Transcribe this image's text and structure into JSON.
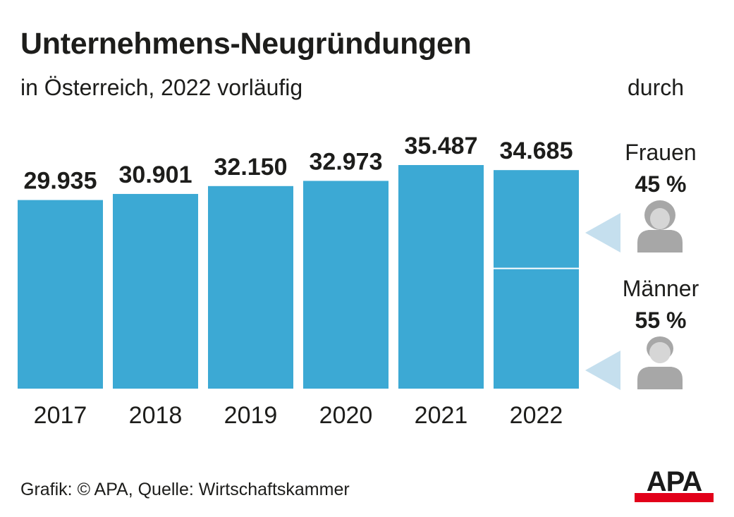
{
  "title": "Unternehmens-Neugründungen",
  "subtitle": "in Österreich, 2022 vorläufig",
  "side_header": "durch",
  "chart_data": {
    "type": "bar",
    "title": "Unternehmens-Neugründungen",
    "subtitle": "in Österreich, 2022 vorläufig",
    "categories": [
      "2017",
      "2018",
      "2019",
      "2020",
      "2021",
      "2022"
    ],
    "values": [
      29935,
      30901,
      32150,
      32973,
      35487,
      34685
    ],
    "value_labels": [
      "29.935",
      "30.901",
      "32.150",
      "32.973",
      "35.487",
      "34.685"
    ],
    "bar_color": "#3ca9d4",
    "breakdown_2022": [
      {
        "name": "Frauen",
        "share_label": "45 %",
        "share": 0.45
      },
      {
        "name": "Männer",
        "share_label": "55 %",
        "share": 0.55
      }
    ]
  },
  "gender": {
    "women": {
      "label": "Frauen",
      "pct": "45 %",
      "icon": "woman-icon"
    },
    "men": {
      "label": "Männer",
      "pct": "55 %",
      "icon": "man-icon"
    }
  },
  "colors": {
    "bar": "#3ca9d4",
    "arrow": "#c5dfee",
    "icon": "#a7a7a7",
    "logo_red": "#e2001a"
  },
  "source": "Grafik: © APA, Quelle: Wirtschaftskammer",
  "logo_text": "APA"
}
